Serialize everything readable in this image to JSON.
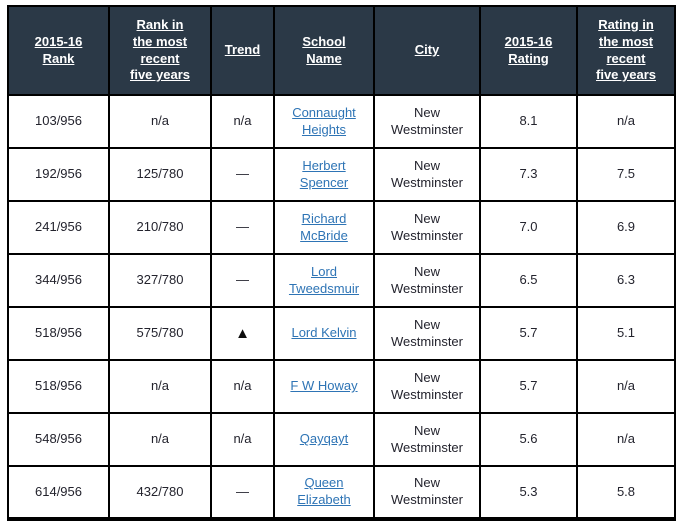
{
  "table": {
    "title": "School rankings table",
    "header_bg": "#2b3947",
    "header_text_color": "#ffffff",
    "link_color": "#2e74b5",
    "border_color": "#000000",
    "columns": [
      {
        "label": "2015-16\nRank"
      },
      {
        "label": "Rank in\nthe most\nrecent\nfive years"
      },
      {
        "label": "Trend"
      },
      {
        "label": "School\nName"
      },
      {
        "label": "City"
      },
      {
        "label": "2015-16\nRating"
      },
      {
        "label": "Rating in\nthe most\nrecent\nfive years"
      }
    ],
    "trend_up_symbol": "▲",
    "rows": [
      {
        "rank": "103/956",
        "rank_recent": "n/a",
        "trend": "n/a",
        "school": "Connaught Heights",
        "city": "New Westminster",
        "rating": "8.1",
        "rating_recent": "n/a"
      },
      {
        "rank": "192/956",
        "rank_recent": "125/780",
        "trend": "—",
        "school": "Herbert Spencer",
        "city": "New Westminster",
        "rating": "7.3",
        "rating_recent": "7.5"
      },
      {
        "rank": "241/956",
        "rank_recent": "210/780",
        "trend": "—",
        "school": "Richard McBride",
        "city": "New Westminster",
        "rating": "7.0",
        "rating_recent": "6.9"
      },
      {
        "rank": "344/956",
        "rank_recent": "327/780",
        "trend": "—",
        "school": "Lord Tweedsmuir",
        "city": "New Westminster",
        "rating": "6.5",
        "rating_recent": "6.3"
      },
      {
        "rank": "518/956",
        "rank_recent": "575/780",
        "trend": "▲",
        "school": "Lord Kelvin",
        "city": "New Westminster",
        "rating": "5.7",
        "rating_recent": "5.1"
      },
      {
        "rank": "518/956",
        "rank_recent": "n/a",
        "trend": "n/a",
        "school": "F W Howay",
        "city": "New Westminster",
        "rating": "5.7",
        "rating_recent": "n/a"
      },
      {
        "rank": "548/956",
        "rank_recent": "n/a",
        "trend": "n/a",
        "school": "Qayqayt",
        "city": "New Westminster",
        "rating": "5.6",
        "rating_recent": "n/a"
      },
      {
        "rank": "614/956",
        "rank_recent": "432/780",
        "trend": "—",
        "school": "Queen Elizabeth",
        "city": "New Westminster",
        "rating": "5.3",
        "rating_recent": "5.8"
      }
    ]
  }
}
